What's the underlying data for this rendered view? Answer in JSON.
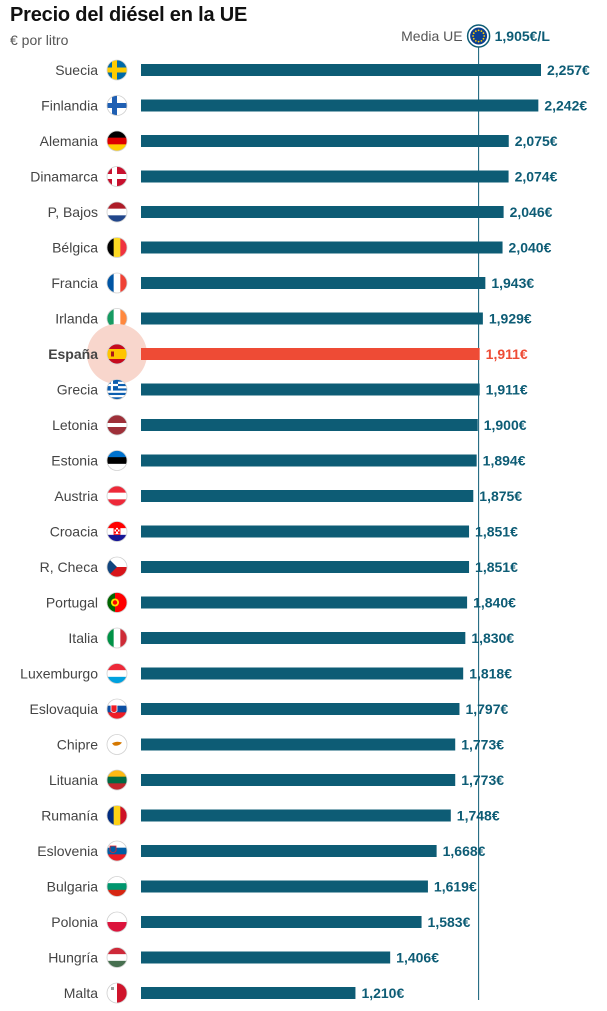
{
  "colors": {
    "bar": "#0d5c75",
    "highlight": "#ee4b35",
    "highlight_halo": "#f8d6cc",
    "avg_line": "#0d5c75"
  },
  "chart_data": {
    "type": "bar",
    "orientation": "horizontal",
    "title": "Precio del diésel en la UE",
    "subtitle": "€ por litro",
    "average": {
      "label": "Media UE",
      "value_label": "1,905€/L",
      "value": 1.905,
      "icon": "eu-flag-icon"
    },
    "highlight": "España",
    "xlim": [
      0,
      2.257
    ],
    "categories": [
      "Suecia",
      "Finlandia",
      "Alemania",
      "Dinamarca",
      "P, Bajos",
      "Bélgica",
      "Francia",
      "Irlanda",
      "España",
      "Grecia",
      "Letonia",
      "Estonia",
      "Austria",
      "Croacia",
      "R, Checa",
      "Portugal",
      "Italia",
      "Luxemburgo",
      "Eslovaquia",
      "Chipre",
      "Lituania",
      "Rumanía",
      "Eslovenia",
      "Bulgaria",
      "Polonia",
      "Hungría",
      "Malta"
    ],
    "values": [
      2.257,
      2.242,
      2.075,
      2.074,
      2.046,
      2.04,
      1.943,
      1.929,
      1.911,
      1.911,
      1.9,
      1.894,
      1.875,
      1.851,
      1.851,
      1.84,
      1.83,
      1.818,
      1.797,
      1.773,
      1.773,
      1.748,
      1.668,
      1.619,
      1.583,
      1.406,
      1.21
    ],
    "value_labels": [
      "2,257€",
      "2,242€",
      "2,075€",
      "2,074€",
      "2,046€",
      "2,040€",
      "1,943€",
      "1,929€",
      "1,911€",
      "1,911€",
      "1,900€",
      "1,894€",
      "1,875€",
      "1,851€",
      "1,851€",
      "1,840€",
      "1,830€",
      "1,818€",
      "1,797€",
      "1,773€",
      "1,773€",
      "1,748€",
      "1,668€",
      "1,619€",
      "1,583€",
      "1,406€",
      "1,210€"
    ],
    "flags": [
      "sweden-flag-icon",
      "finland-flag-icon",
      "germany-flag-icon",
      "denmark-flag-icon",
      "netherlands-flag-icon",
      "belgium-flag-icon",
      "france-flag-icon",
      "ireland-flag-icon",
      "spain-flag-icon",
      "greece-flag-icon",
      "latvia-flag-icon",
      "estonia-flag-icon",
      "austria-flag-icon",
      "croatia-flag-icon",
      "czechia-flag-icon",
      "portugal-flag-icon",
      "italy-flag-icon",
      "luxembourg-flag-icon",
      "slovakia-flag-icon",
      "cyprus-flag-icon",
      "lithuania-flag-icon",
      "romania-flag-icon",
      "slovenia-flag-icon",
      "bulgaria-flag-icon",
      "poland-flag-icon",
      "hungary-flag-icon",
      "malta-flag-icon"
    ]
  }
}
